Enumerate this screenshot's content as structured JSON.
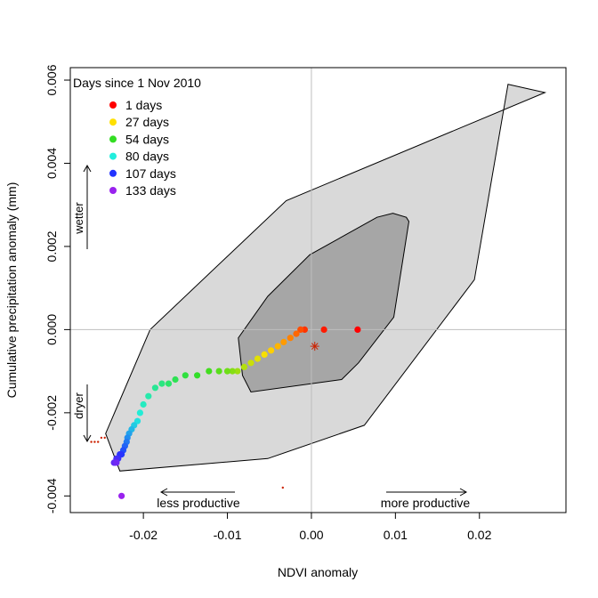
{
  "chart_data": {
    "type": "scatter",
    "title": "",
    "xlabel": "NDVI anomaly",
    "ylabel": "Cumulative precipitation anomaly (mm)",
    "xlim": [
      -0.0287,
      0.0303
    ],
    "ylim": [
      -0.0044,
      0.0063
    ],
    "xticks": [
      -0.02,
      -0.01,
      0.0,
      0.01,
      0.02
    ],
    "xtick_labels": [
      "-0.02",
      "-0.01",
      "0.00",
      "0.01",
      "0.02"
    ],
    "yticks": [
      -0.004,
      -0.002,
      0.0,
      0.002,
      0.004,
      0.006
    ],
    "ytick_labels": [
      "-0.004",
      "-0.002",
      "0.000",
      "0.002",
      "0.004",
      "0.006"
    ],
    "grid": false,
    "reference_lines": {
      "x": 0,
      "y": 0
    },
    "legend": {
      "title": "Days since 1 Nov 2010",
      "placement": "top-left",
      "entries": [
        {
          "label": "1 days",
          "color": "#ff0000"
        },
        {
          "label": "27 days",
          "color": "#ffe000"
        },
        {
          "label": "54 days",
          "color": "#33dd22"
        },
        {
          "label": "80 days",
          "color": "#22eedd"
        },
        {
          "label": "107 days",
          "color": "#2233ff"
        },
        {
          "label": "133 days",
          "color": "#9922ee"
        }
      ]
    },
    "annotations": {
      "wetter": "wetter",
      "dryer": "dryer",
      "less_productive": "less productive",
      "more_productive": "more productive"
    },
    "outer_region": {
      "fill": "#d9d9d9",
      "x": [
        -0.0192,
        -0.0245,
        -0.0228,
        -0.0052,
        0.0063,
        0.0194,
        0.0234,
        0.0278,
        -0.003
      ],
      "y": [
        0.0,
        -0.0025,
        -0.0034,
        -0.0031,
        -0.0023,
        0.0012,
        0.0059,
        0.0057,
        0.0031
      ]
    },
    "inner_region": {
      "fill": "#a6a6a6",
      "x": [
        -0.0087,
        -0.0082,
        -0.0072,
        0.0036,
        0.0056,
        0.0098,
        0.0116,
        0.0113,
        0.0097,
        0.0078,
        -0.0002,
        -0.0052
      ],
      "y": [
        -0.0002,
        -0.0011,
        -0.0015,
        -0.0012,
        -0.0008,
        0.0003,
        0.0026,
        0.0027,
        0.0028,
        0.0027,
        0.0018,
        0.0008
      ]
    },
    "center_marker": {
      "x": 0.0004,
      "y": -0.0004,
      "color": "#cc2200"
    },
    "series": [
      {
        "marker": "filled-circle",
        "color_scale": "days: red→yellow→green→cyan→blue→violet",
        "x": [
          0.0055,
          0.0015,
          -0.0008,
          -0.0013,
          -0.0018,
          -0.0025,
          -0.0033,
          -0.004,
          -0.0048,
          -0.0056,
          -0.0064,
          -0.0072,
          -0.008,
          -0.0088,
          -0.0094,
          -0.01,
          -0.011,
          -0.0122,
          -0.0136,
          -0.015,
          -0.0162,
          -0.017,
          -0.0178,
          -0.0186,
          -0.0194,
          -0.02,
          -0.0204,
          -0.0207,
          -0.0211,
          -0.0214,
          -0.0217,
          -0.0219,
          -0.022,
          -0.0222,
          -0.0224,
          -0.0226,
          -0.0228,
          -0.023,
          -0.0232,
          -0.0234,
          -0.0235,
          -0.0232
        ],
        "y": [
          0.0,
          0.0,
          0.0,
          0.0,
          -0.0001,
          -0.0002,
          -0.0003,
          -0.0004,
          -0.0005,
          -0.0006,
          -0.0007,
          -0.0008,
          -0.0009,
          -0.001,
          -0.001,
          -0.001,
          -0.001,
          -0.001,
          -0.0011,
          -0.0011,
          -0.0012,
          -0.0013,
          -0.0013,
          -0.0014,
          -0.0016,
          -0.0018,
          -0.002,
          -0.0022,
          -0.0023,
          -0.0024,
          -0.0025,
          -0.0026,
          -0.0027,
          -0.0028,
          -0.0029,
          -0.003,
          -0.003,
          -0.0031,
          -0.0031,
          -0.0032,
          -0.0032,
          -0.0032
        ],
        "days": [
          1,
          4,
          7,
          10,
          13,
          16,
          19,
          22,
          25,
          28,
          31,
          34,
          37,
          40,
          43,
          46,
          49,
          52,
          55,
          58,
          61,
          64,
          67,
          70,
          73,
          76,
          79,
          82,
          85,
          88,
          91,
          94,
          97,
          100,
          103,
          106,
          109,
          112,
          115,
          118,
          121,
          124
        ]
      },
      {
        "marker": "small-dot",
        "color": "#cc2200",
        "x": [
          -0.0262,
          -0.0258,
          -0.0254,
          -0.025,
          -0.0246,
          -0.0034
        ],
        "y": [
          -0.0027,
          -0.0027,
          -0.0027,
          -0.0026,
          -0.0026,
          -0.0038
        ]
      },
      {
        "marker": "filled-circle",
        "color": "#9922ee",
        "x": [
          -0.0226
        ],
        "y": [
          -0.004
        ]
      }
    ]
  }
}
